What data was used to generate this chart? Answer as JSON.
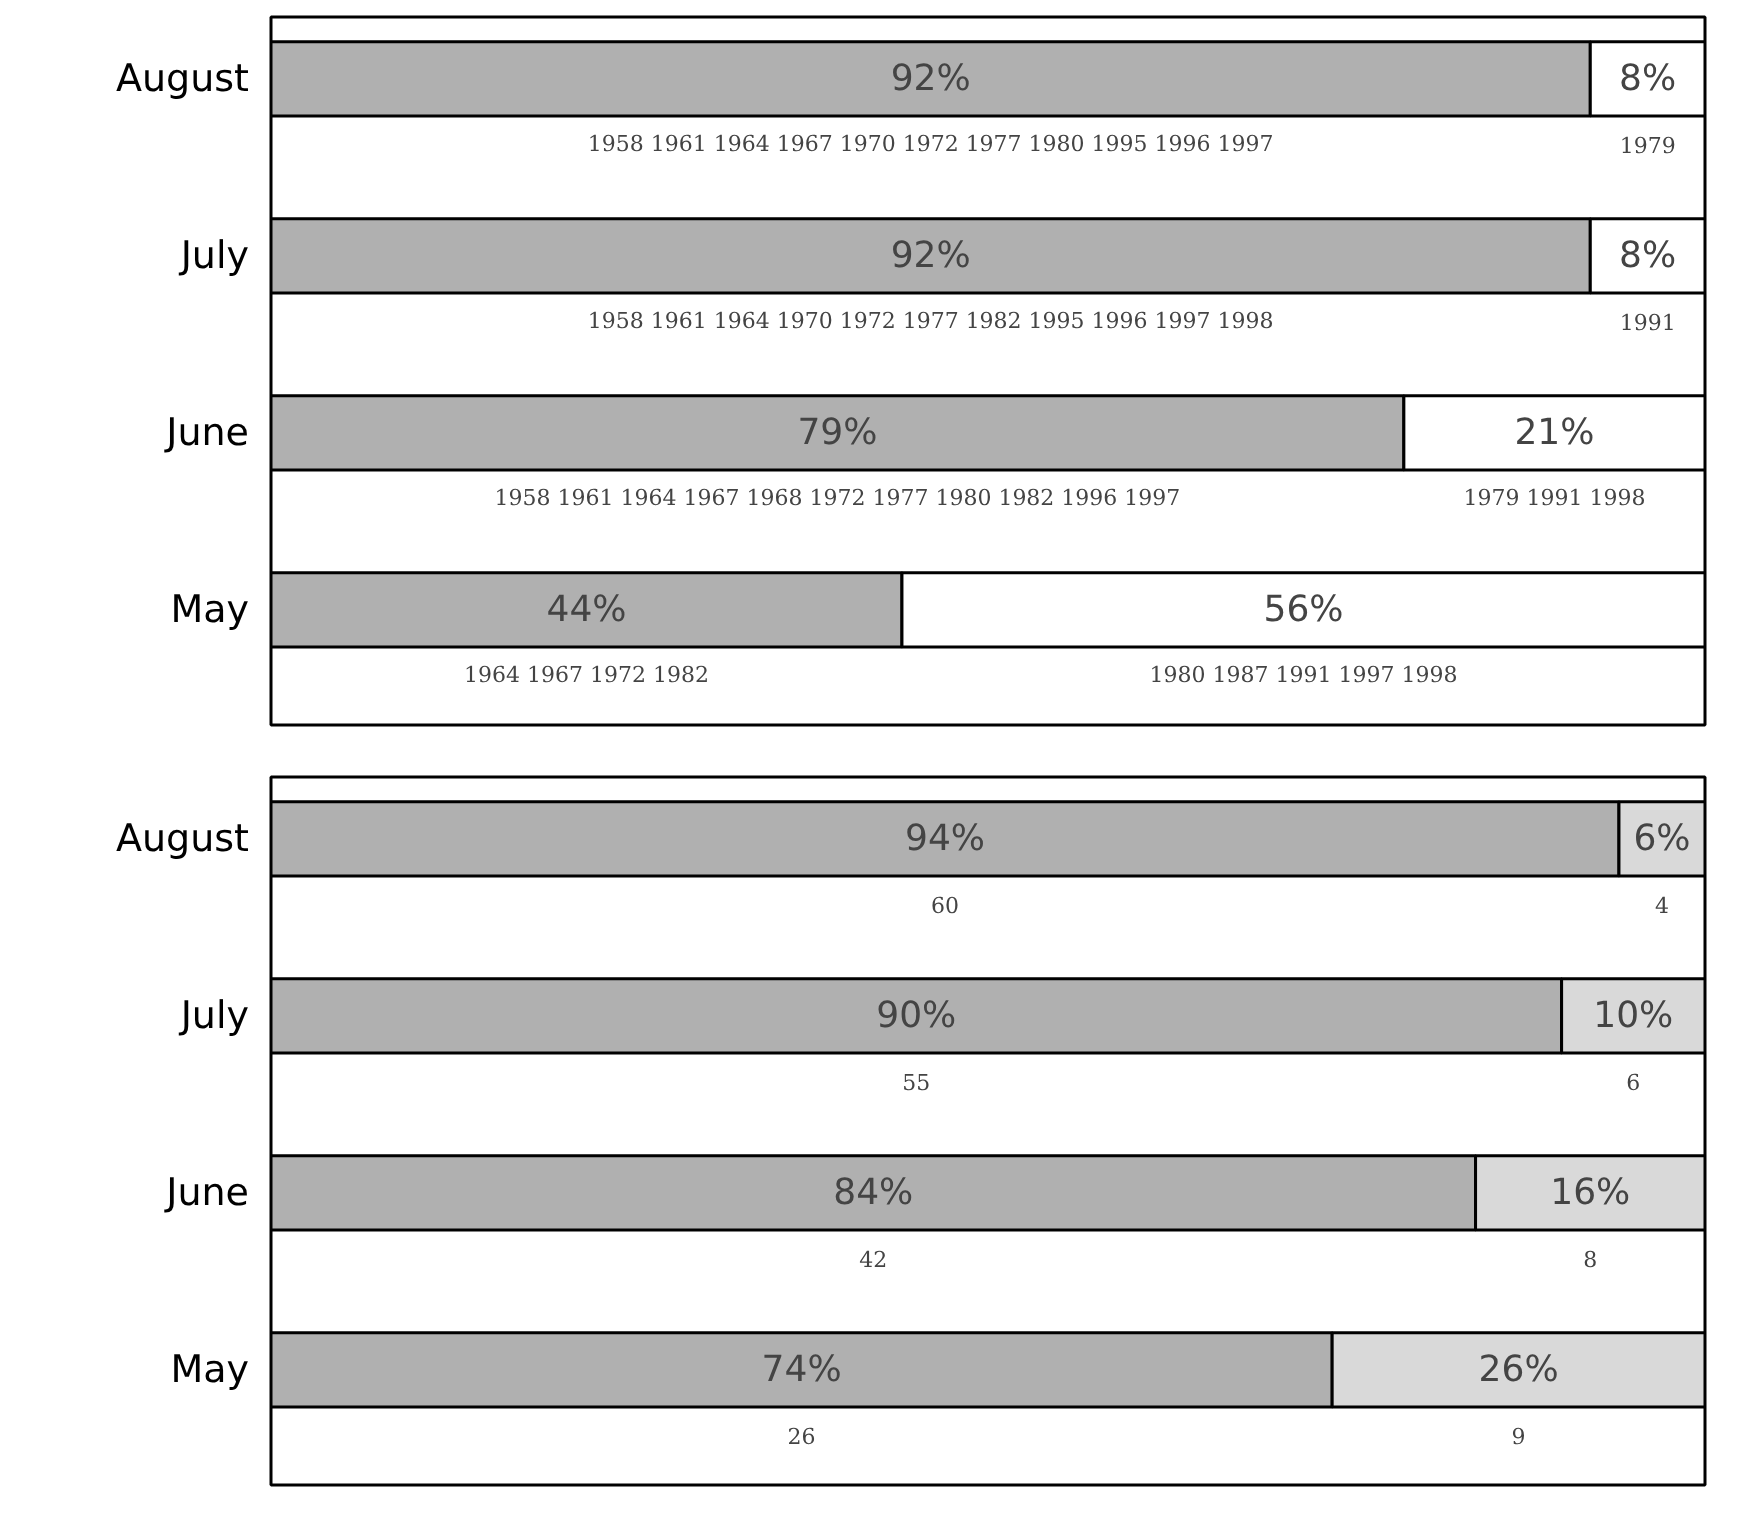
{
  "chart_data": [
    {
      "type": "bar",
      "orientation": "horizontal",
      "stacked": true,
      "categories": [
        "August",
        "July",
        "June",
        "May"
      ],
      "xlim": [
        0,
        100
      ],
      "tick_labels": "y",
      "series": [
        {
          "color": "#b0b0b0",
          "values": [
            92,
            92,
            79,
            44
          ],
          "value_labels": [
            "92%",
            "92%",
            "79%",
            "44%"
          ]
        },
        {
          "color": "#ffffff",
          "values": [
            8,
            8,
            21,
            56
          ],
          "value_labels": [
            "8%",
            "8%",
            "21%",
            "56%"
          ]
        }
      ],
      "annotations": [
        "1958 1961 1964 1967 1970 1972 1977 1980 1995 1996 1997",
        "1979",
        "1958 1961 1964 1970 1972 1977 1982 1995 1996 1997 1998",
        "1991",
        "1958 1961 1964 1967 1968 1972 1977 1980 1982 1996 1997",
        "1979 1991 1998",
        "1964 1967 1972 1982",
        "1980 1987 1991 1997 1998"
      ]
    },
    {
      "type": "bar",
      "orientation": "horizontal",
      "stacked": true,
      "categories": [
        "August",
        "July",
        "June",
        "May"
      ],
      "xlim": [
        0,
        100
      ],
      "tick_labels": "y",
      "series": [
        {
          "color": "#b0b0b0",
          "values": [
            94,
            90,
            84,
            74
          ],
          "value_labels": [
            "94%",
            "90%",
            "84%",
            "74%"
          ]
        },
        {
          "color": "#d9d9d9",
          "values": [
            6,
            10,
            16,
            26
          ],
          "value_labels": [
            "6%",
            "10%",
            "16%",
            "26%"
          ]
        }
      ],
      "annotations": [
        "60",
        "4",
        "55",
        "6",
        "42",
        "8",
        "26",
        "9"
      ]
    }
  ]
}
